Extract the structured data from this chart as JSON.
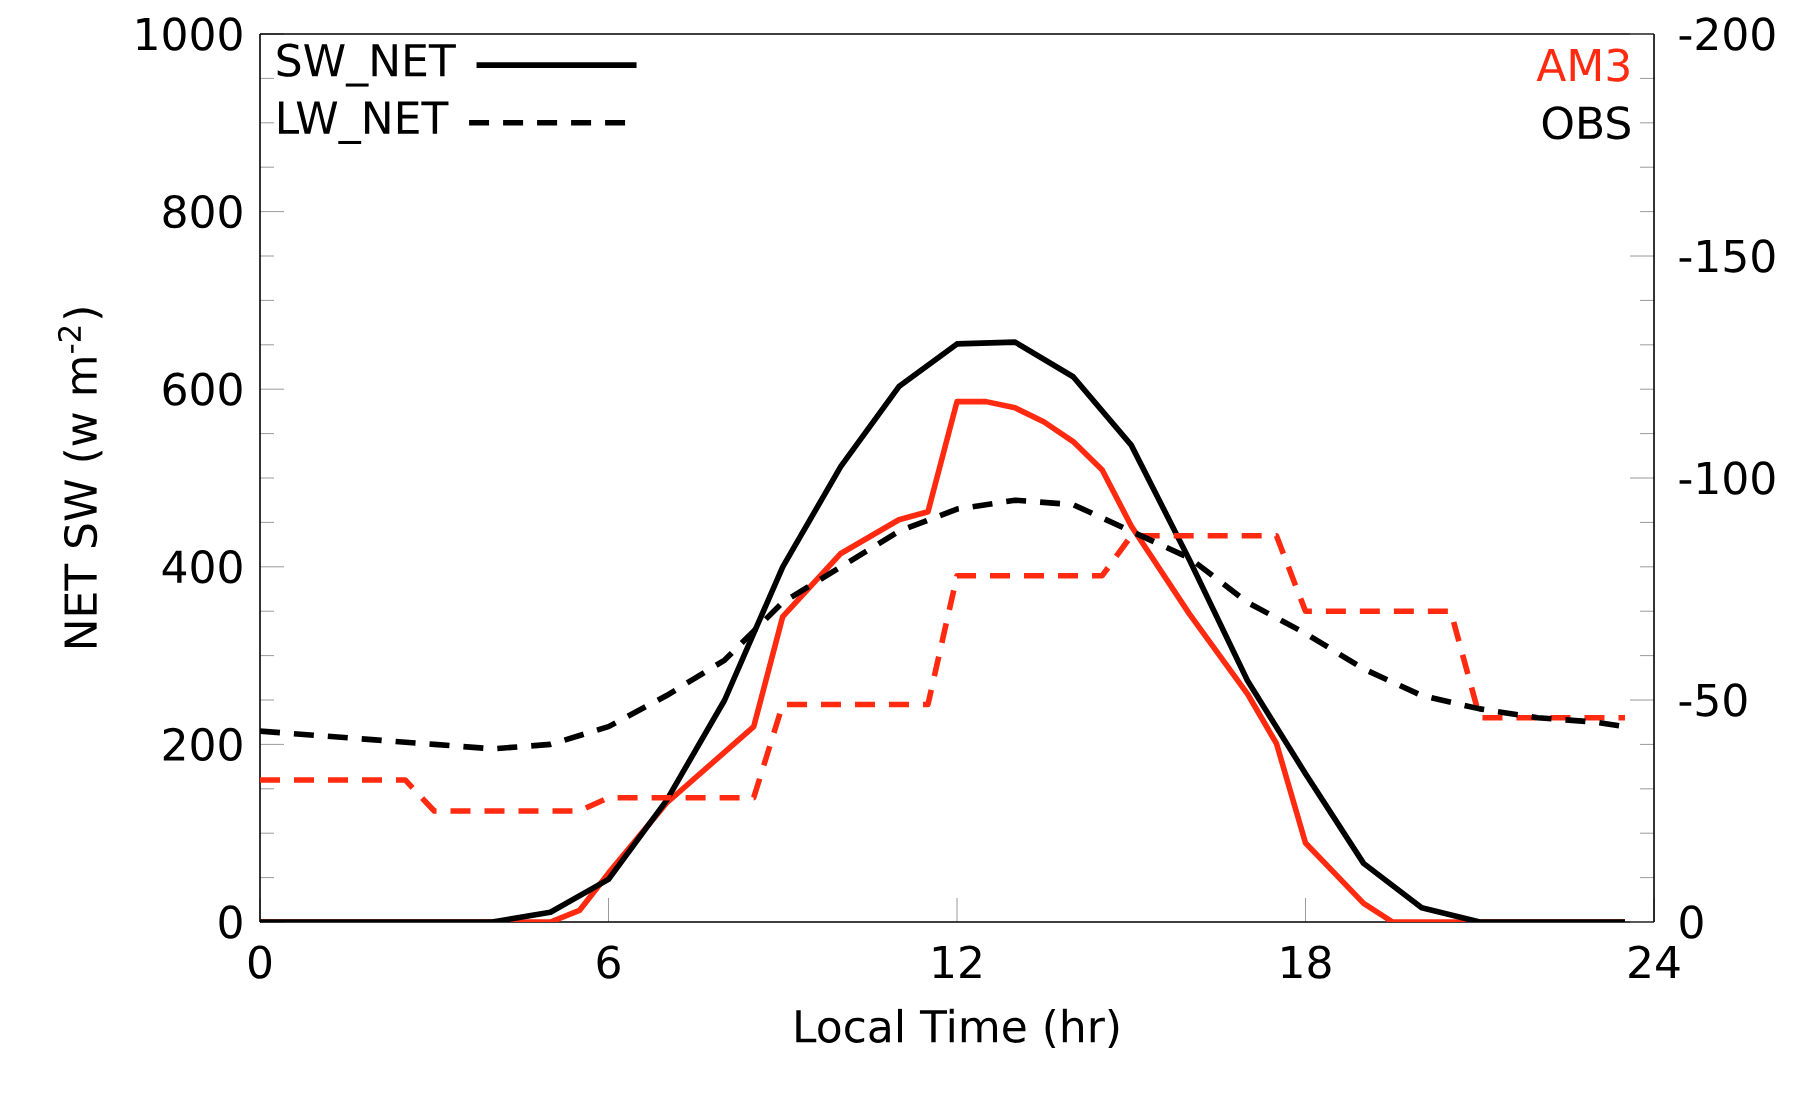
{
  "chart_data": {
    "type": "line",
    "xlabel": "Local Time (hr)",
    "ylabel": "NET SW (w m$^{-2}$)",
    "xlim": [
      0,
      24
    ],
    "xticks": [
      0,
      6,
      12,
      18,
      24
    ],
    "ylim": [
      0,
      1000
    ],
    "yticks": [
      0,
      200,
      400,
      600,
      800,
      1000
    ],
    "y2lim": [
      0,
      -200
    ],
    "y2ticks": [
      0,
      -50,
      -100,
      -150,
      -200
    ],
    "annotations": [
      "SW_NET",
      "LW_NET"
    ],
    "series": [
      {
        "name": "AM3",
        "color": "#ff2a10",
        "line_style": "solid",
        "x": [
          0,
          4.5,
          5,
          5.5,
          6,
          7,
          8.5,
          9,
          10,
          11,
          11.5,
          12,
          12.5,
          13,
          13.5,
          14,
          14.5,
          15,
          16,
          17,
          17.5,
          18,
          18.5,
          19,
          19.5,
          23.5
        ],
        "values": [
          0,
          0,
          0,
          13,
          55,
          134,
          220,
          344,
          415,
          453,
          462,
          586,
          586,
          579,
          563,
          541,
          509,
          446,
          347,
          257,
          201,
          89,
          55,
          21,
          0,
          0
        ]
      },
      {
        "name": "OBS",
        "color": "#000000",
        "line_style": "solid",
        "x": [
          0,
          4,
          5,
          6,
          7,
          8,
          9,
          10,
          11,
          12,
          13,
          14,
          15,
          16,
          17,
          18,
          19,
          20,
          21,
          23.5
        ],
        "values": [
          0,
          0,
          11,
          48,
          137,
          250,
          400,
          513,
          603,
          651,
          653,
          614,
          537,
          408,
          272,
          167,
          66,
          16,
          0,
          0
        ]
      },
      {
        "color": "#ff2a10",
        "line_style": "dashed",
        "axis": "y2",
        "x": [
          0,
          2.5,
          3,
          5.5,
          6,
          8.5,
          9,
          11.5,
          12,
          14.5,
          15,
          17.5,
          18,
          20.5,
          21,
          23.5
        ],
        "values": [
          -32,
          -32,
          -25,
          -25,
          -28,
          -28,
          -49,
          -49,
          -78,
          -78,
          -87,
          -87,
          -70,
          -70,
          -46,
          -46
        ]
      },
      {
        "color": "#000000",
        "line_style": "dashed",
        "axis": "y2",
        "x": [
          0,
          1,
          2,
          3,
          4,
          5,
          6,
          7,
          8,
          9,
          10,
          11,
          12,
          13,
          14,
          15,
          16,
          17,
          18,
          19,
          20,
          21,
          22,
          23,
          23.5
        ],
        "values": [
          -43,
          -42,
          -41,
          -40,
          -39,
          -40,
          -44,
          -51,
          -59,
          -72,
          -80,
          -88,
          -93,
          -95,
          -94,
          -88,
          -82,
          -72,
          -65,
          -57,
          -51,
          -48,
          -46,
          -45,
          -44
        ]
      }
    ]
  }
}
